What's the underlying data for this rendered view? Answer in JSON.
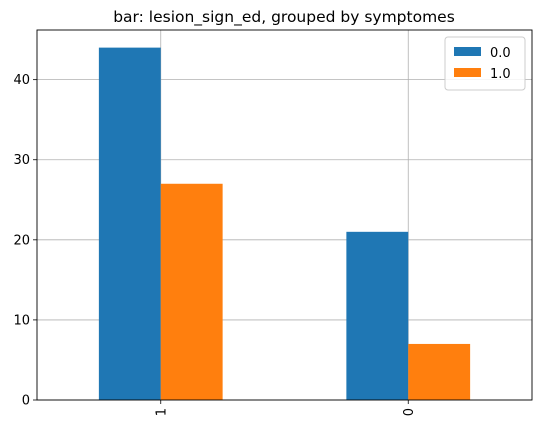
{
  "chart_data": {
    "type": "bar",
    "title": "bar: lesion_sign_ed, grouped by symptomes",
    "xlabel": "",
    "ylabel": "",
    "categories": [
      "1",
      "0"
    ],
    "series": [
      {
        "name": "0.0",
        "values": [
          44,
          21
        ],
        "color": "#1f77b4"
      },
      {
        "name": "1.0",
        "values": [
          27,
          7
        ],
        "color": "#ff7f0e"
      }
    ],
    "ylim": [
      0,
      46.2
    ],
    "yticks": [
      0,
      10,
      20,
      30,
      40
    ],
    "grid": true,
    "legend_position": "top-right",
    "x_tick_rotation": "vertical"
  }
}
